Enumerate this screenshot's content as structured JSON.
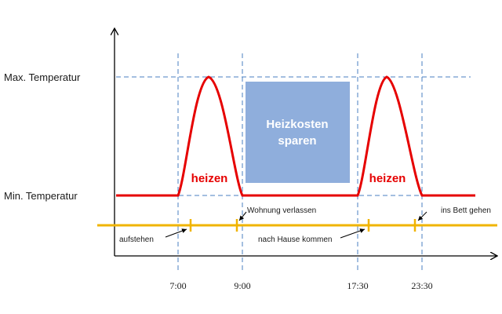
{
  "axis": {
    "y_max_label": "Max. Temperatur",
    "y_min_label": "Min. Temperatur"
  },
  "times": [
    "7:00",
    "9:00",
    "17:30",
    "23:30"
  ],
  "heat_labels": {
    "first": "heizen",
    "second": "heizen"
  },
  "savings": {
    "line1": "Heizkosten",
    "line2": "sparen"
  },
  "events": {
    "wake": "aufstehen",
    "leave": "Wohnung verlassen",
    "come_home": "nach Hause kommen",
    "bed": "ins Bett gehen"
  },
  "colors": {
    "temperature_curve": "#e60000",
    "guides": "#4a7fc1",
    "timeline": "#f0b400",
    "savings_box": "#8faedc",
    "axis": "#000000"
  }
}
